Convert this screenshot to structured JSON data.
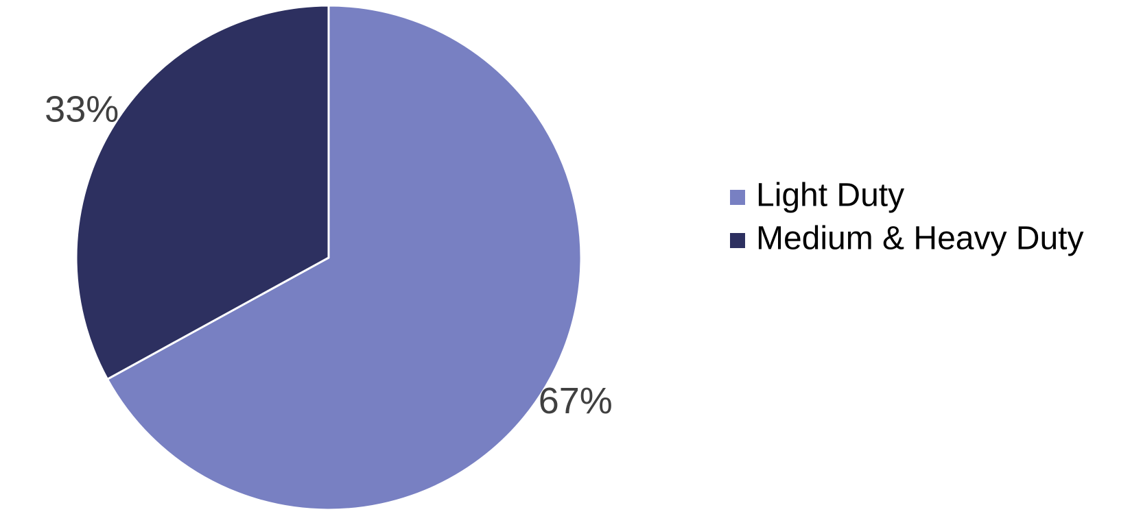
{
  "chart_data": {
    "type": "pie",
    "title": "",
    "start_angle_deg": 0,
    "direction": "clockwise",
    "slices": [
      {
        "label": "Light Duty",
        "value": 67,
        "display": "67%",
        "color": "#7880c2"
      },
      {
        "label": "Medium & Heavy Duty",
        "value": 33,
        "display": "33%",
        "color": "#2d3060"
      }
    ],
    "legend": {
      "position": "right"
    },
    "colors": {
      "slice_border": "#ffffff",
      "data_label": "#404040",
      "legend_text": "#000000"
    }
  }
}
